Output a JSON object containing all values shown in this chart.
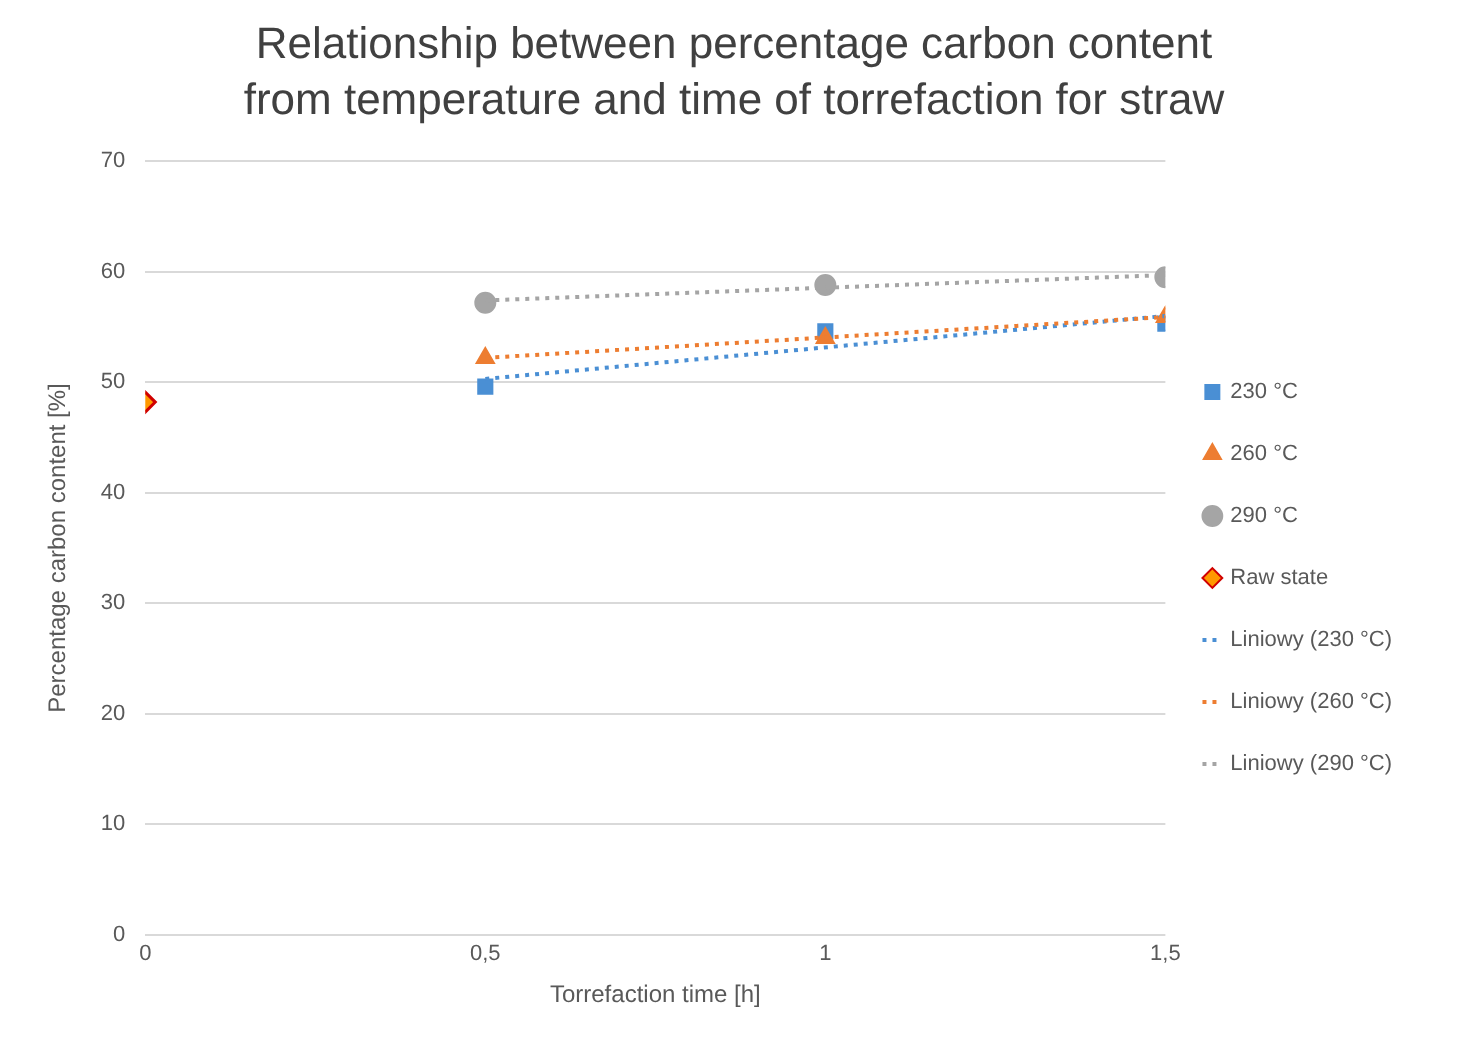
{
  "chart_data": {
    "type": "scatter",
    "title": "Relationship between percentage carbon content from temperature and time of torrefaction for straw",
    "xlabel": "Torrefaction time [h]",
    "ylabel": "Percentage carbon content [%]",
    "xlim": [
      0,
      1.5
    ],
    "xticks": [
      0,
      {
        "value": 0.5,
        "label": "0,5"
      },
      1,
      {
        "value": 1.5,
        "label": "1,5"
      }
    ],
    "ylim": [
      0,
      70
    ],
    "yticks": [
      0,
      10,
      20,
      30,
      40,
      50,
      60,
      70
    ],
    "grid": "y",
    "legend": "right",
    "series": [
      {
        "name": "230 °C",
        "type": "scatter",
        "marker": "square",
        "color": "#4a8fd4",
        "x": [
          0.5,
          1,
          1.5
        ],
        "values": [
          49.6,
          54.6,
          55.3
        ]
      },
      {
        "name": "260 °C",
        "type": "scatter",
        "marker": "triangle",
        "color": "#ed7d31",
        "x": [
          0.5,
          1,
          1.5
        ],
        "values": [
          52.2,
          54.0,
          55.9
        ]
      },
      {
        "name": "290 °C",
        "type": "scatter",
        "marker": "circle",
        "color": "#a5a5a5",
        "x": [
          0.5,
          1,
          1.5
        ],
        "values": [
          57.2,
          58.8,
          59.5
        ]
      },
      {
        "name": "Raw state",
        "type": "scatter",
        "marker": "diamond",
        "color": "#ff9900",
        "x": [
          0
        ],
        "values": [
          48.2
        ]
      },
      {
        "name": "Liniowy (230 °C)",
        "type": "line",
        "line_style": "dotted",
        "marker": "none",
        "color": "#4a8fd4",
        "x": [
          0.5,
          1.5
        ],
        "values": [
          50.3,
          56.0
        ]
      },
      {
        "name": "Liniowy (260 °C)",
        "type": "line",
        "line_style": "dotted",
        "marker": "none",
        "color": "#ed7d31",
        "x": [
          0.5,
          1.5
        ],
        "values": [
          52.2,
          55.9
        ]
      },
      {
        "name": "Liniowy (290 °C)",
        "type": "line",
        "line_style": "dotted",
        "marker": "none",
        "color": "#a5a5a5",
        "x": [
          0.5,
          1.5
        ],
        "values": [
          57.4,
          59.7
        ]
      }
    ]
  }
}
